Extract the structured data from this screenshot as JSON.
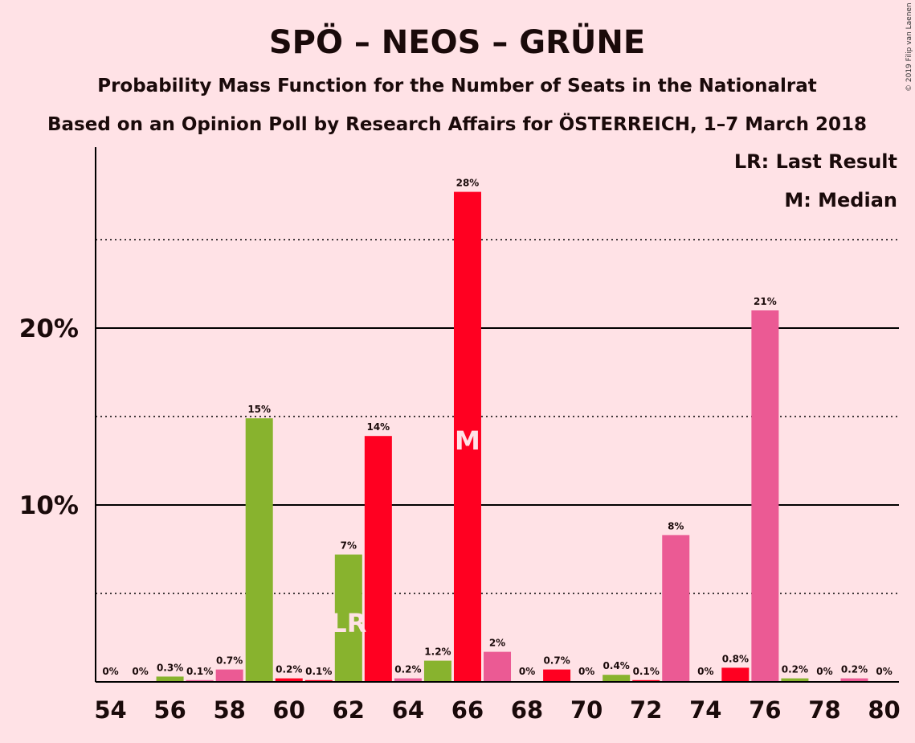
{
  "chart_data": {
    "type": "bar",
    "title": "SPÖ – NEOS – GRÜNE",
    "subtitle_lines": [
      "Probability Mass Function for the Number of Seats in the Nationalrat",
      "Based on an Opinion Poll by Research Affairs for ÖSTERREICH, 1–7 March 2018"
    ],
    "credit": "© 2019 Filip van Laenen",
    "legend": [
      "LR: Last Result",
      "M: Median"
    ],
    "x": [
      54,
      55,
      56,
      57,
      58,
      59,
      60,
      61,
      62,
      63,
      64,
      65,
      66,
      67,
      68,
      69,
      70,
      71,
      72,
      73,
      74,
      75,
      76,
      77,
      78,
      79,
      80
    ],
    "values": [
      0,
      0,
      0.3,
      0.1,
      0.7,
      14.9,
      0.2,
      0.1,
      7.2,
      13.9,
      0.2,
      1.2,
      27.7,
      1.7,
      0,
      0.7,
      0,
      0.4,
      0.1,
      8.3,
      0,
      0.8,
      21.0,
      0.2,
      0,
      0.2,
      0
    ],
    "data_labels": [
      "0%",
      "0%",
      "0.3%",
      "0.1%",
      "0.7%",
      "15%",
      "0.2%",
      "0.1%",
      "7%",
      "14%",
      "0.2%",
      "1.2%",
      "28%",
      "2%",
      "0%",
      "0.7%",
      "0%",
      "0.4%",
      "0.1%",
      "8%",
      "0%",
      "0.8%",
      "21%",
      "0.2%",
      "0%",
      "0.2%",
      "0%"
    ],
    "bar_colors": [
      "#EB5A94",
      "#88B32E",
      "#88B32E",
      "#EB5A94",
      "#EB5A94",
      "#88B32E",
      "#FF0021",
      "#FF0021",
      "#88B32E",
      "#FF0021",
      "#EB5A94",
      "#88B32E",
      "#FF0021",
      "#EB5A94",
      "#EB5A94",
      "#FF0021",
      "#FF0021",
      "#88B32E",
      "#FF0021",
      "#EB5A94",
      "#EB5A94",
      "#FF0021",
      "#EB5A94",
      "#88B32E",
      "#88B32E",
      "#EB5A94",
      "#EB5A94"
    ],
    "xticks": [
      54,
      56,
      58,
      60,
      62,
      64,
      66,
      68,
      70,
      72,
      74,
      76,
      78,
      80
    ],
    "yticks_major": [
      {
        "value": 10,
        "label": "10%"
      },
      {
        "value": 20,
        "label": "20%"
      }
    ],
    "yticks_minor": [
      5,
      15,
      25
    ],
    "ylim": [
      0,
      30
    ],
    "last_result": {
      "x": 62,
      "label": "LR"
    },
    "median": {
      "x": 66,
      "label": "M"
    }
  }
}
